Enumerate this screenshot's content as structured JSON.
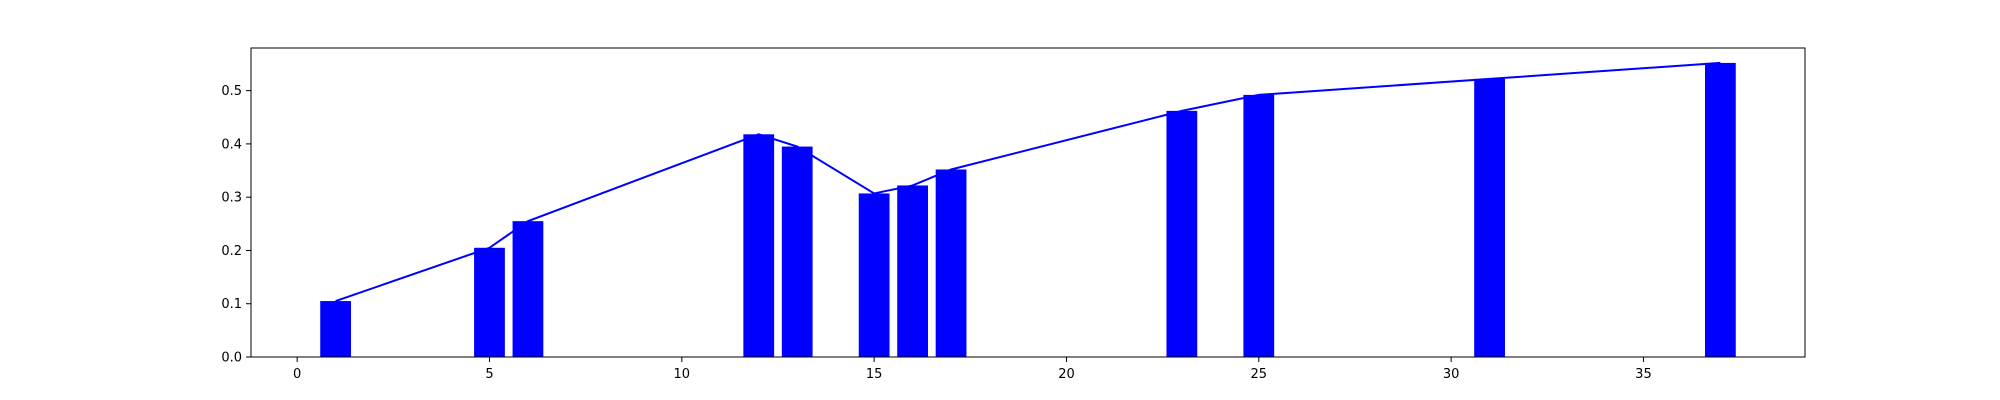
{
  "chart_data": {
    "type": "bar",
    "title": "",
    "xlabel": "",
    "ylabel": "",
    "xlim": [
      -1.2,
      39.2
    ],
    "ylim": [
      0,
      0.58
    ],
    "x_ticks": [
      0,
      5,
      10,
      15,
      20,
      25,
      30,
      35
    ],
    "y_ticks": [
      0.0,
      0.1,
      0.2,
      0.3,
      0.4,
      0.5
    ],
    "y_tick_labels": [
      "0.0",
      "0.1",
      "0.2",
      "0.3",
      "0.4",
      "0.5"
    ],
    "grid": false,
    "legend": "none",
    "bar_color": "#0000ff",
    "line_color": "#0000ff",
    "series": [
      {
        "type": "bar",
        "x": [
          1,
          5,
          6,
          12,
          13,
          15,
          16,
          17,
          23,
          25,
          31,
          37
        ],
        "values": [
          0.105,
          0.205,
          0.255,
          0.418,
          0.395,
          0.307,
          0.322,
          0.352,
          0.462,
          0.492,
          0.522,
          0.552
        ]
      },
      {
        "type": "line",
        "x": [
          1,
          5,
          6,
          12,
          13,
          15,
          16,
          17,
          23,
          25,
          31,
          37
        ],
        "values": [
          0.105,
          0.205,
          0.255,
          0.418,
          0.395,
          0.307,
          0.322,
          0.352,
          0.462,
          0.492,
          0.522,
          0.552
        ]
      }
    ]
  }
}
